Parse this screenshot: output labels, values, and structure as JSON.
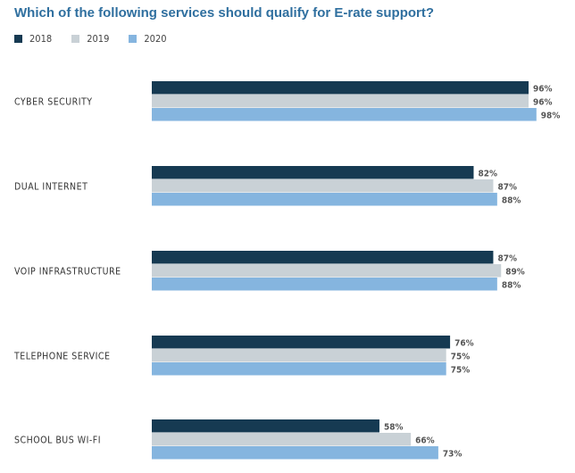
{
  "chart_data": {
    "type": "bar",
    "orientation": "horizontal",
    "title": "Which of the following services should qualify for E-rate support?",
    "categories": [
      "CYBER SECURITY",
      "DUAL INTERNET",
      "VOIP INFRASTRUCTURE",
      "TELEPHONE SERVICE",
      "SCHOOL BUS WI-FI"
    ],
    "series": [
      {
        "name": "2018",
        "color": "#163a52",
        "values": [
          96,
          82,
          87,
          76,
          58
        ]
      },
      {
        "name": "2019",
        "color": "#c9d1d6",
        "values": [
          96,
          87,
          89,
          75,
          66
        ]
      },
      {
        "name": "2020",
        "color": "#85b5df",
        "values": [
          98,
          88,
          88,
          75,
          73
        ]
      }
    ],
    "xlim": [
      0,
      100
    ],
    "value_suffix": "%",
    "legend": "top-left",
    "grid": false
  }
}
